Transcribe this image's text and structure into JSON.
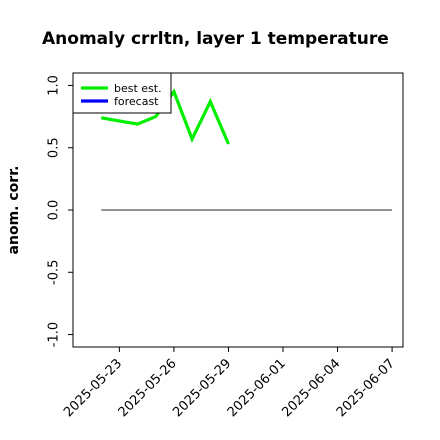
{
  "chart_data": {
    "type": "line",
    "title": "Anomaly crrltn, layer 1 temperature",
    "xlabel": "",
    "ylabel": "anom. corr.",
    "ylim": [
      -1.1,
      1.1
    ],
    "xlim": [
      "2025-05-21",
      "2025-06-07"
    ],
    "yticks": [
      "-1.0",
      "-0.5",
      "0.0",
      "0.5",
      "1.0"
    ],
    "xticks": [
      "2025-05-23",
      "2025-05-26",
      "2025-05-29",
      "2025-06-01",
      "2025-06-04",
      "2025-06-07"
    ],
    "highlighted_xtick": "2025-05-29",
    "legend": {
      "placement": "top-left",
      "entries": [
        "best est.",
        "forecast"
      ]
    },
    "series": [
      {
        "name": "best est.",
        "color": "#00ee00",
        "points": [
          {
            "x": "2025-05-22",
            "y": 0.74
          },
          {
            "x": "2025-05-24",
            "y": 0.69
          },
          {
            "x": "2025-05-25",
            "y": 0.75
          },
          {
            "x": "2025-05-26",
            "y": 0.95
          },
          {
            "x": "2025-05-27",
            "y": 0.57
          },
          {
            "x": "2025-05-28",
            "y": 0.87
          },
          {
            "x": "2025-05-29",
            "y": 0.53
          }
        ]
      },
      {
        "name": "forecast",
        "color": "#0000ff",
        "points": []
      }
    ],
    "reference_line": {
      "y": 0.0,
      "x_from": "2025-05-22",
      "x_to": "2025-06-07",
      "color": "#555555"
    },
    "highlight_color": "#228b22"
  }
}
